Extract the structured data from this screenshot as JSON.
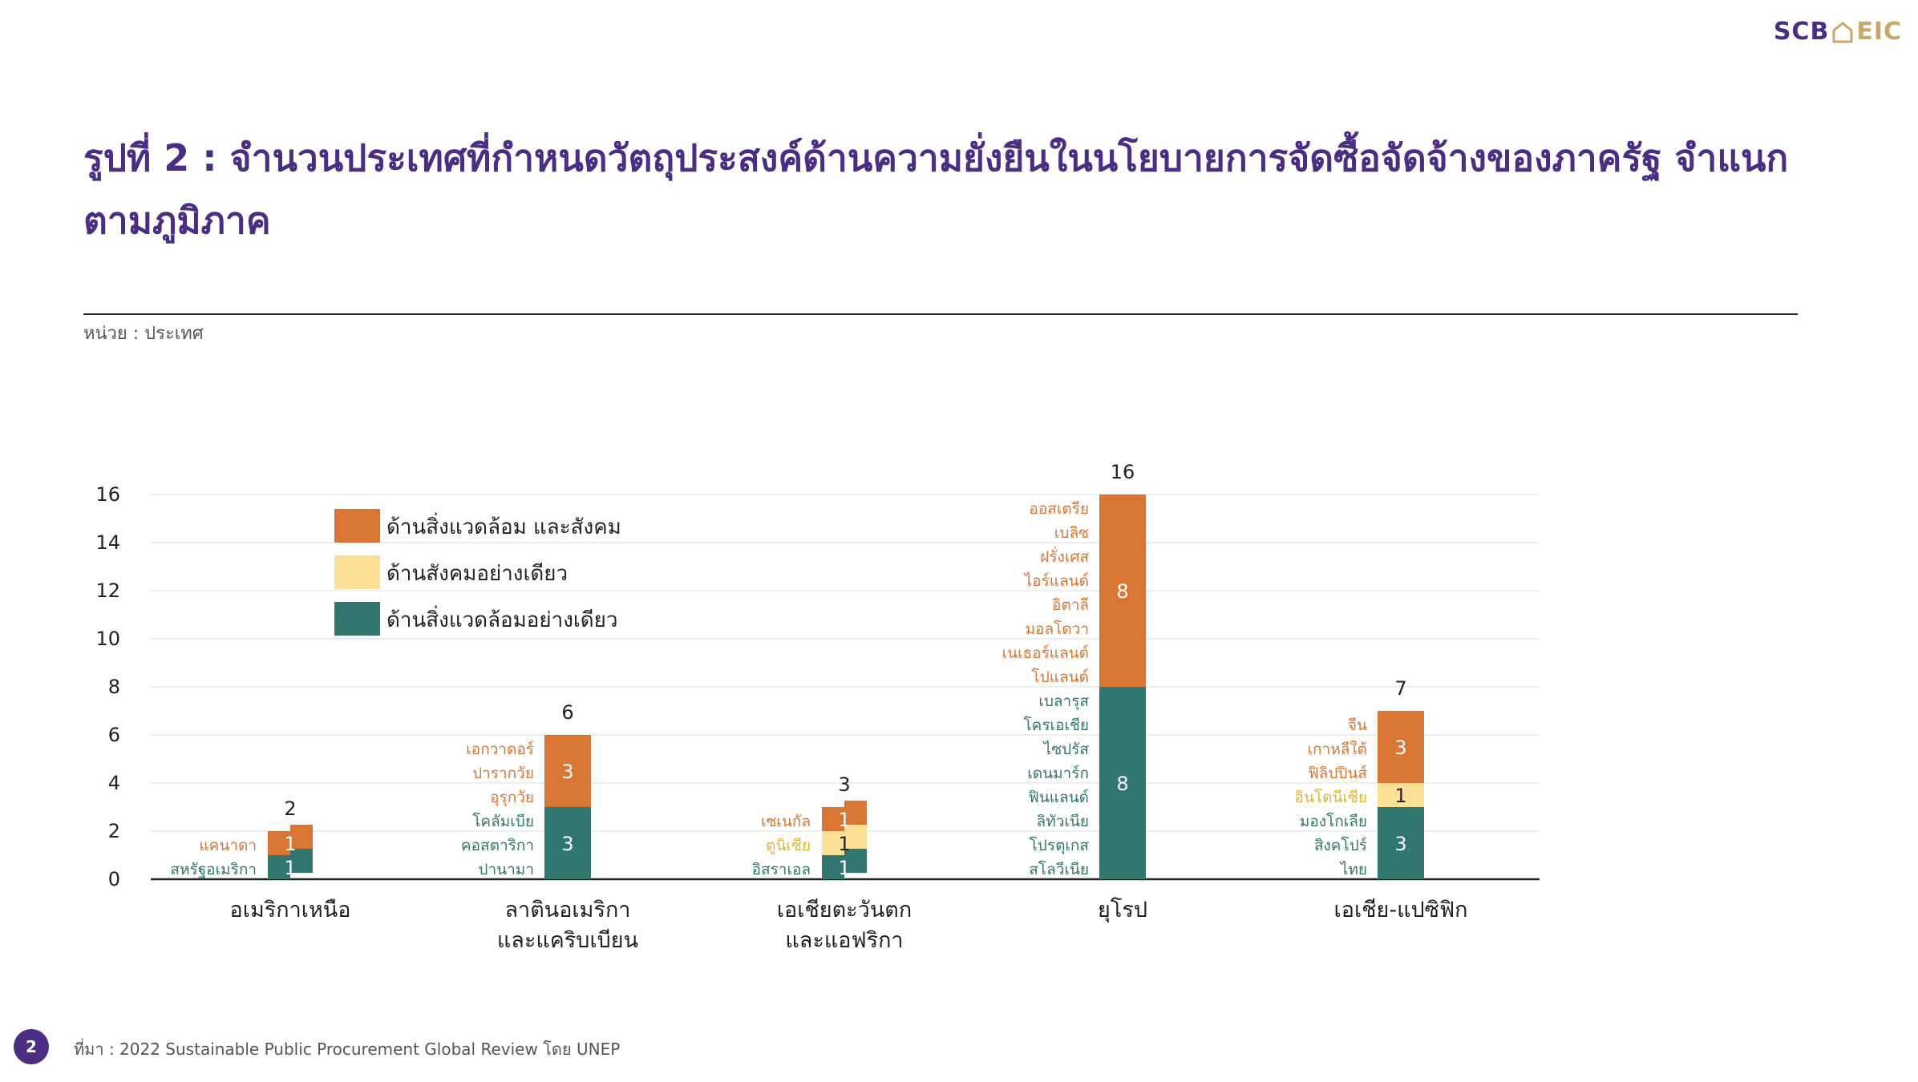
{
  "logo": {
    "left": "SCB",
    "right": "EIC"
  },
  "title": "รูปที่ 2 : จำนวนประเทศที่กำหนดวัตถุประสงค์ด้านความยั่งยืนในนโยบายการจัดซื้อจัดจ้างของภาครัฐ จำแนกตามภูมิภาค",
  "unit_label": "หน่วย : ประเทศ",
  "source": "ที่มา : 2022 Sustainable Public Procurement Global Review โดย UNEP",
  "page_number": "2",
  "colors": {
    "env_social": "#d97634",
    "social": "#fbe096",
    "env": "#32776f",
    "axis": "#222222",
    "grid": "#e6e6e6",
    "label_env_social": "#d97634",
    "label_social": "#e3b52b",
    "label_env": "#32776f"
  },
  "chart_data": {
    "type": "bar",
    "stacked": true,
    "ylim": [
      0,
      16
    ],
    "yticks": [
      0,
      2,
      4,
      6,
      8,
      10,
      12,
      14,
      16
    ],
    "grid": true,
    "legend_position": "top-left",
    "categories": [
      [
        "อเมริกาเหนือ"
      ],
      [
        "ลาตินอเมริกา",
        "และแคริบเบียน"
      ],
      [
        "เอเชียตะวันตก",
        "และแอฟริกา"
      ],
      [
        "ยุโรป"
      ],
      [
        "เอเชีย-แปซิฟิก"
      ]
    ],
    "series": [
      {
        "name": "ด้านสิ่งแวดล้อมอย่างเดียว",
        "values": [
          1,
          3,
          1,
          8,
          3
        ]
      },
      {
        "name": "ด้านสังคมอย่างเดียว",
        "values": [
          0,
          0,
          1,
          0,
          1
        ]
      },
      {
        "name": "ด้านสิ่งแวดล้อม และสังคม",
        "values": [
          1,
          3,
          1,
          8,
          3
        ]
      }
    ],
    "totals": [
      2,
      6,
      3,
      16,
      7
    ],
    "legend_order": [
      "ด้านสิ่งแวดล้อม และสังคม",
      "ด้านสังคมอย่างเดียว",
      "ด้านสิ่งแวดล้อมอย่างเดียว"
    ],
    "country_labels": [
      {
        "env_social": [
          "แคนาดา"
        ],
        "social": [],
        "env": [
          "สหรัฐอเมริกา"
        ]
      },
      {
        "env_social": [
          "เอกวาดอร์",
          "ปารากวัย",
          "อุรุกวัย"
        ],
        "social": [],
        "env": [
          "โคลัมเบีย",
          "คอสตาริกา",
          "ปานามา"
        ]
      },
      {
        "env_social": [
          "เซเนกัล"
        ],
        "social": [
          "ตูนิเซีย"
        ],
        "env": [
          "อิสราเอล"
        ]
      },
      {
        "env_social": [
          "ออสเตรีย",
          "เบลิซ",
          "ฝรั่งเศส",
          "ไอร์แลนด์",
          "อิตาลี",
          "มอลโดวา",
          "เนเธอร์แลนด์",
          "โปแลนด์"
        ],
        "social": [],
        "env": [
          "เบลารุส",
          "โครเอเชีย",
          "ไซปรัส",
          "เดนมาร์ก",
          "ฟินแลนด์",
          "ลิทัวเนีย",
          "โปรตุเกส",
          "สโลวีเนีย"
        ]
      },
      {
        "env_social": [
          "จีน",
          "เกาหลีใต้",
          "ฟิลิปปินส์"
        ],
        "social": [
          "อินโดนีเซีย"
        ],
        "env": [
          "มองโกเลีย",
          "สิงคโปร์",
          "ไทย"
        ]
      }
    ]
  }
}
